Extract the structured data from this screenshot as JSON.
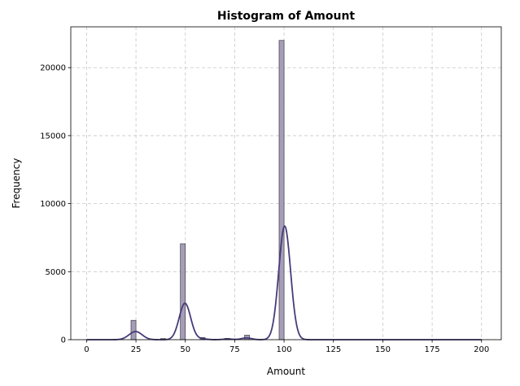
{
  "chart_data": {
    "type": "bar",
    "title": "Histogram of Amount",
    "xlabel": "Amount",
    "ylabel": "Frequency",
    "xlim": [
      -8,
      210
    ],
    "ylim": [
      0,
      23000
    ],
    "x_ticks": [
      0,
      25,
      50,
      75,
      100,
      125,
      150,
      175,
      200
    ],
    "y_ticks": [
      0,
      5000,
      10000,
      15000,
      20000
    ],
    "grid": true,
    "bin_width": 2.5,
    "bins": [
      {
        "x0": 22.5,
        "x1": 25,
        "value": 1420
      },
      {
        "x0": 37.5,
        "x1": 40,
        "value": 80
      },
      {
        "x0": 47.5,
        "x1": 50,
        "value": 7050
      },
      {
        "x0": 57.5,
        "x1": 60,
        "value": 160
      },
      {
        "x0": 70,
        "x1": 72.5,
        "value": 100
      },
      {
        "x0": 80,
        "x1": 82.5,
        "value": 330
      },
      {
        "x0": 97.5,
        "x1": 100,
        "value": 22000
      }
    ],
    "kde": {
      "peaks": [
        {
          "center": 24.8,
          "height": 600,
          "sigma": 3.3
        },
        {
          "center": 49.8,
          "height": 2680,
          "sigma": 2.9
        },
        {
          "center": 58.5,
          "height": 60,
          "sigma": 2.5
        },
        {
          "center": 71.5,
          "height": 50,
          "sigma": 2.5
        },
        {
          "center": 81.0,
          "height": 130,
          "sigma": 2.5
        },
        {
          "center": 100.3,
          "height": 8350,
          "sigma": 3.0
        }
      ],
      "range": [
        0,
        200
      ]
    },
    "colors": {
      "bar_fill": "#a59db9",
      "bar_edge": "#3c3c3c",
      "kde_line": "#473b7b",
      "grid": "#c8c8c8"
    }
  }
}
